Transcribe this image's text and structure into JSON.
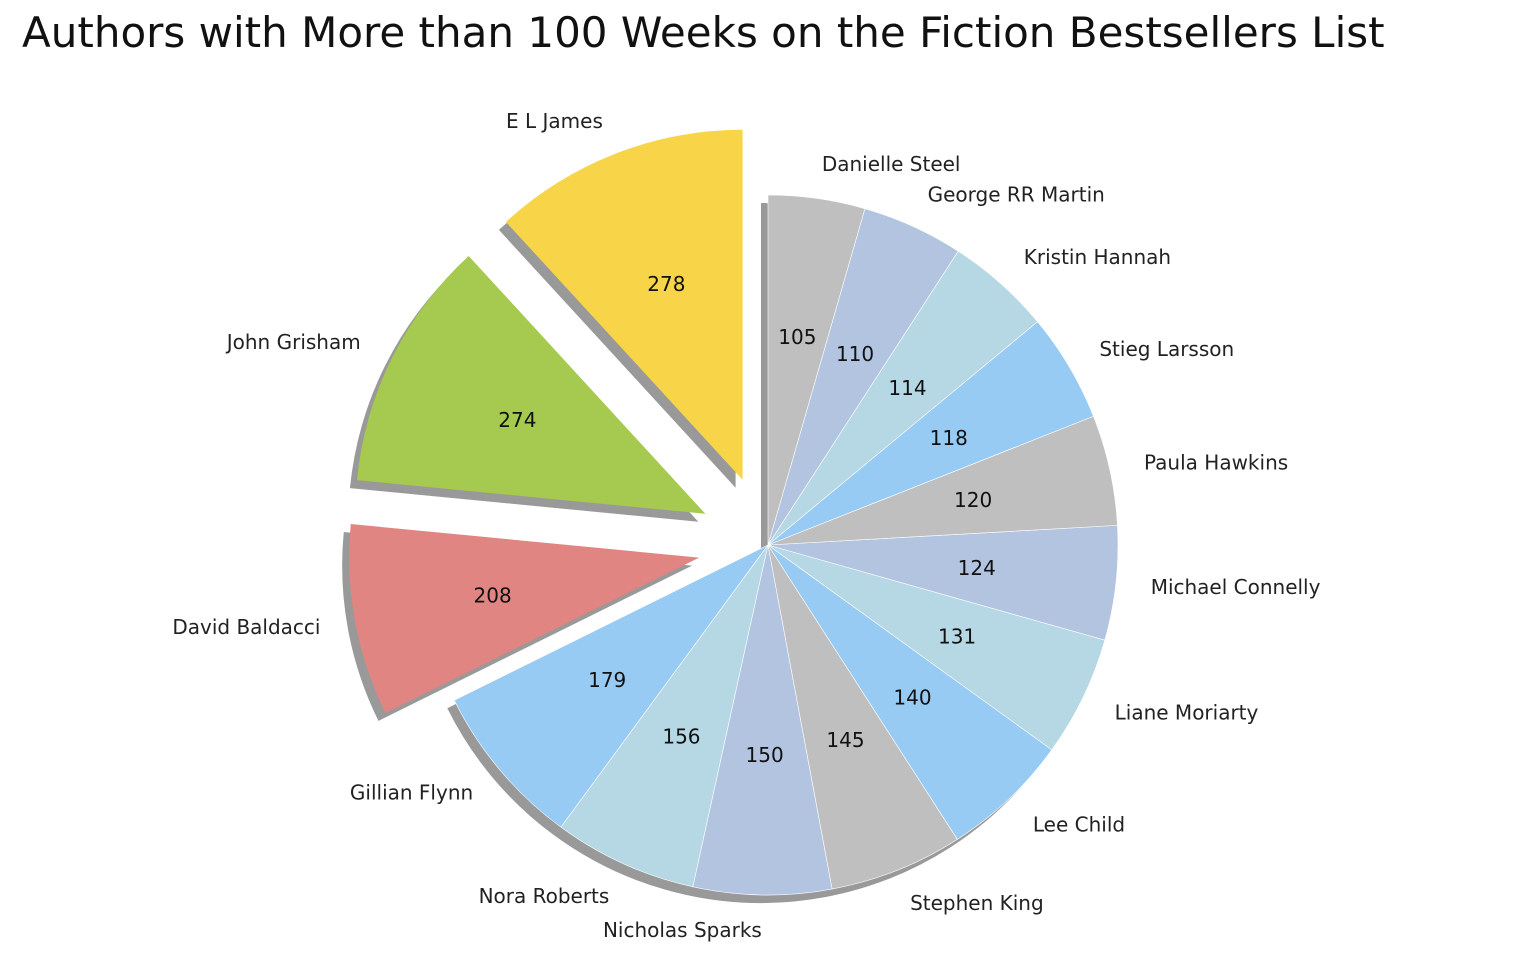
{
  "chart_data": {
    "type": "pie",
    "title": "Authors with More than 100 Weeks on the Fiction Bestsellers List",
    "start_angle_deg": 90,
    "direction": "counterclockwise",
    "shadow": true,
    "slices": [
      {
        "label": "E L James",
        "value": 278,
        "color": "#f8d548",
        "exploded": true
      },
      {
        "label": "John Grisham",
        "value": 274,
        "color": "#a6c94f",
        "exploded": true
      },
      {
        "label": "David Baldacci",
        "value": 208,
        "color": "#e08581",
        "exploded": true
      },
      {
        "label": "Gillian Flynn",
        "value": 179,
        "color": "#97cbf4",
        "exploded": false
      },
      {
        "label": "Nora Roberts",
        "value": 156,
        "color": "#b5d8e4",
        "exploded": false
      },
      {
        "label": "Nicholas Sparks",
        "value": 150,
        "color": "#b2c4e0",
        "exploded": false
      },
      {
        "label": "Stephen King",
        "value": 145,
        "color": "#bfbfbf",
        "exploded": false
      },
      {
        "label": "Lee Child",
        "value": 140,
        "color": "#97cbf4",
        "exploded": false
      },
      {
        "label": "Liane Moriarty",
        "value": 131,
        "color": "#b5d8e4",
        "exploded": false
      },
      {
        "label": "Michael Connelly",
        "value": 124,
        "color": "#b2c4e0",
        "exploded": false
      },
      {
        "label": "Paula Hawkins",
        "value": 120,
        "color": "#bfbfbf",
        "exploded": false
      },
      {
        "label": "Stieg Larsson",
        "value": 118,
        "color": "#97cbf4",
        "exploded": false
      },
      {
        "label": "Kristin Hannah",
        "value": 114,
        "color": "#b5d8e4",
        "exploded": false
      },
      {
        "label": "George RR Martin",
        "value": 110,
        "color": "#b2c4e0",
        "exploded": false
      },
      {
        "label": "Danielle Steel",
        "value": 105,
        "color": "#bfbfbf",
        "exploded": false
      }
    ]
  }
}
